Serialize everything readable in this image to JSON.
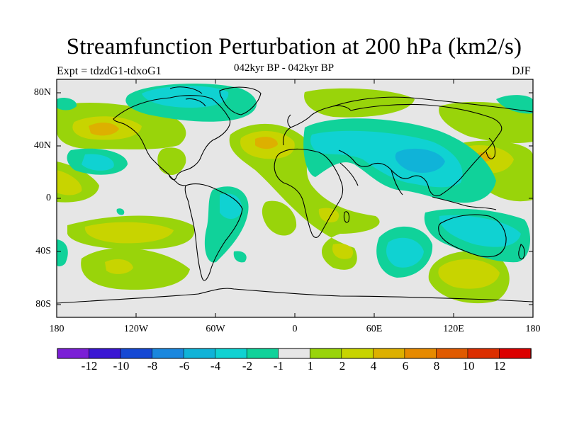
{
  "title": "Streamfunction Perturbation at 200 hPa (km2/s)",
  "left_subtitle": "Expt = tdzdG1-tdxoG1",
  "center_subtitle": "042kyr BP - 042kyr BP",
  "right_subtitle": "DJF",
  "lat_labels": [
    "80N",
    "40N",
    "0",
    "40S",
    "80S"
  ],
  "lon_labels": [
    "180",
    "120W",
    "60W",
    "0",
    "60E",
    "120E",
    "180"
  ],
  "colorbar": {
    "labels": [
      "-12",
      "-10",
      "-8",
      "-6",
      "-4",
      "-2",
      "-1",
      "1",
      "2",
      "4",
      "6",
      "8",
      "10",
      "12"
    ],
    "colors": [
      "#7b1fd6",
      "#3a16d3",
      "#1548d4",
      "#1a87de",
      "#10b3d8",
      "#10d2d2",
      "#10d29a",
      "#e6e6e6",
      "#99d40a",
      "#c8d400",
      "#ddb000",
      "#e68a00",
      "#e05a00",
      "#dc2e00",
      "#dc0000"
    ]
  },
  "palette": {
    "background": "#e6e6e6",
    "coast": "#000000"
  }
}
